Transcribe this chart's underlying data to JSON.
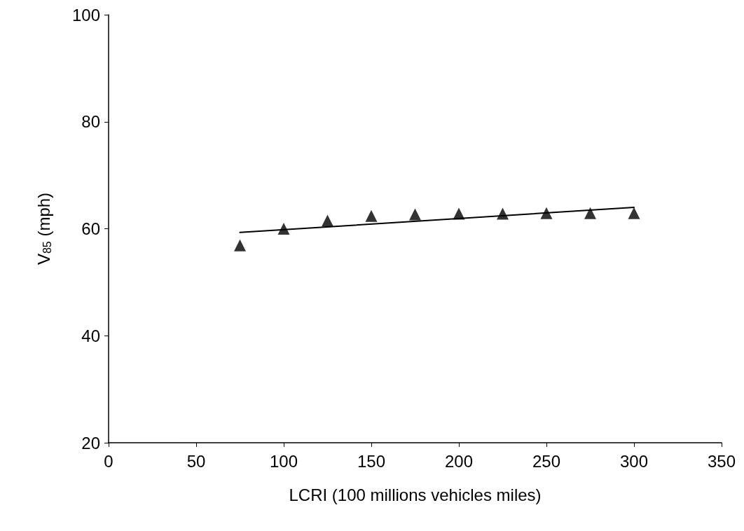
{
  "chart_data": {
    "type": "scatter",
    "xlabel": "LCRI (100 millions vehicles miles)",
    "ylabel": "V$_{85}$ (mph)",
    "xlim": [
      0,
      350
    ],
    "xticks": [
      0,
      50,
      100,
      150,
      200,
      250,
      300,
      350
    ],
    "ylim": [
      20,
      100
    ],
    "yticks": [
      20,
      40,
      60,
      80,
      100
    ],
    "grid": false,
    "marker": "triangle",
    "series": [
      {
        "color": "#000000",
        "x": [
          75,
          100,
          125,
          150,
          175,
          200,
          225,
          250,
          275,
          300
        ],
        "values": [
          56.9,
          60.0,
          61.5,
          62.4,
          62.7,
          62.8,
          62.8,
          62.9,
          62.9,
          62.9
        ]
      },
      {
        "type": "line",
        "color": "#000000",
        "marker": "none",
        "line_style": "solid",
        "x": [
          75,
          300
        ],
        "values": [
          59.3,
          64.0
        ]
      }
    ]
  }
}
